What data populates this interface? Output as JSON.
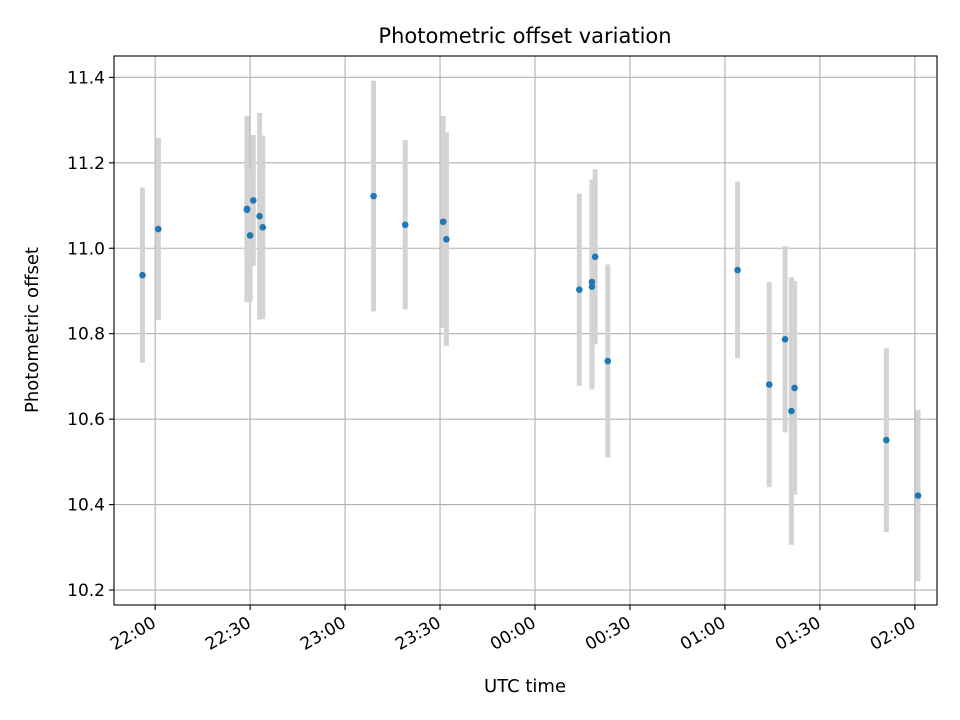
{
  "chart_data": {
    "type": "scatter",
    "title": "Photometric offset variation",
    "xlabel": "UTC time",
    "ylabel": "Photometric offset",
    "x_ticks": [
      "22:00",
      "22:30",
      "23:00",
      "23:30",
      "00:00",
      "00:30",
      "01:00",
      "01:30",
      "02:00"
    ],
    "y_ticks": [
      "10.2",
      "10.4",
      "10.6",
      "10.8",
      "11.0",
      "11.2",
      "11.4"
    ],
    "xlim": [
      "21:47",
      "02:07"
    ],
    "ylim": [
      10.165,
      11.45
    ],
    "grid": true,
    "point_color": "#1f77b4",
    "errorbar_color": "#d3d3d3",
    "points": [
      {
        "x": "21:56",
        "y": 10.937,
        "err": 0.205
      },
      {
        "x": "22:01",
        "y": 11.045,
        "err": 0.213
      },
      {
        "x": "22:29",
        "y": 11.092,
        "err": 0.218
      },
      {
        "x": "22:29",
        "y": 11.09,
        "err": 0.215
      },
      {
        "x": "22:30",
        "y": 11.03,
        "err": 0.155
      },
      {
        "x": "22:31",
        "y": 11.112,
        "err": 0.153
      },
      {
        "x": "22:33",
        "y": 11.075,
        "err": 0.242
      },
      {
        "x": "22:34",
        "y": 11.049,
        "err": 0.215
      },
      {
        "x": "23:09",
        "y": 11.122,
        "err": 0.27
      },
      {
        "x": "23:19",
        "y": 11.055,
        "err": 0.198
      },
      {
        "x": "23:31",
        "y": 11.062,
        "err": 0.248
      },
      {
        "x": "23:32",
        "y": 11.021,
        "err": 0.25
      },
      {
        "x": "00:14",
        "y": 10.903,
        "err": 0.225
      },
      {
        "x": "00:18",
        "y": 10.91,
        "err": 0.24
      },
      {
        "x": "00:18",
        "y": 10.921,
        "err": 0.24
      },
      {
        "x": "00:19",
        "y": 10.98,
        "err": 0.205
      },
      {
        "x": "00:23",
        "y": 10.736,
        "err": 0.226
      },
      {
        "x": "01:04",
        "y": 10.949,
        "err": 0.207
      },
      {
        "x": "01:14",
        "y": 10.681,
        "err": 0.24
      },
      {
        "x": "01:19",
        "y": 10.787,
        "err": 0.218
      },
      {
        "x": "01:21",
        "y": 10.619,
        "err": 0.313
      },
      {
        "x": "01:22",
        "y": 10.673,
        "err": 0.25
      },
      {
        "x": "01:51",
        "y": 10.551,
        "err": 0.215
      },
      {
        "x": "02:01",
        "y": 10.421,
        "err": 0.2
      }
    ]
  }
}
